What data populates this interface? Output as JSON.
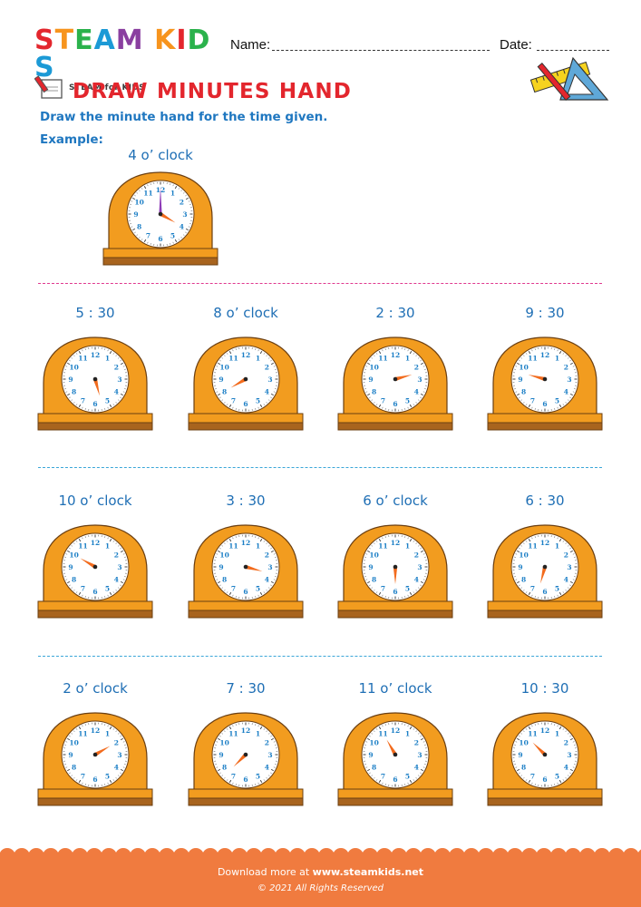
{
  "brand": {
    "letters": [
      "S",
      "T",
      "E",
      "A",
      "M",
      " ",
      "K",
      "I",
      "D",
      "S"
    ],
    "letter_colors": [
      "#e3262d",
      "#f7941d",
      "#2bb24c",
      "#1c9ad6",
      "#8a3fa0",
      "#ffffff",
      "#f7941d",
      "#e3262d",
      "#2bb24c",
      "#1c9ad6"
    ],
    "tagline": "STEAM for KIDS"
  },
  "header": {
    "name_label": "Name:",
    "date_label": "Date:"
  },
  "title": "DRAW MINUTES HAND",
  "instruction": "Draw the minute hand for the time given.",
  "example": {
    "label": "Example:",
    "time_label": "4 o’ clock",
    "hour_angle": 120,
    "minute_angle": 0
  },
  "clocks": [
    {
      "label": "5 : 30",
      "hour_angle": 165
    },
    {
      "label": "8 o’ clock",
      "hour_angle": 240
    },
    {
      "label": "2 : 30",
      "hour_angle": 75
    },
    {
      "label": "9 : 30",
      "hour_angle": 285
    },
    {
      "label": "10 o’ clock",
      "hour_angle": 300
    },
    {
      "label": "3 : 30",
      "hour_angle": 105
    },
    {
      "label": "6 o’ clock",
      "hour_angle": 180
    },
    {
      "label": "6 : 30",
      "hour_angle": 195
    },
    {
      "label": "2 o’ clock",
      "hour_angle": 60
    },
    {
      "label": "7 : 30",
      "hour_angle": 225
    },
    {
      "label": "11 o’ clock",
      "hour_angle": 330
    },
    {
      "label": "10 : 30",
      "hour_angle": 315
    }
  ],
  "dial_numbers": [
    "12",
    "1",
    "2",
    "3",
    "4",
    "5",
    "6",
    "7",
    "8",
    "9",
    "10",
    "11"
  ],
  "colors": {
    "clock_body": "#f29c1f",
    "clock_outline": "#6b3f12",
    "base": "#a8641e",
    "hour_hand": "#f26b1d",
    "minute_hand": "#8e3bb7",
    "numbers": "#1c7fc6",
    "divider_pink": "#e0398f",
    "divider_blue": "#3aa6d8",
    "footer": "#f07b3f"
  },
  "footer": {
    "prefix": "Download more at ",
    "site": "www.steamkids.net",
    "copyright": "©  2021 All Rights Reserved"
  }
}
